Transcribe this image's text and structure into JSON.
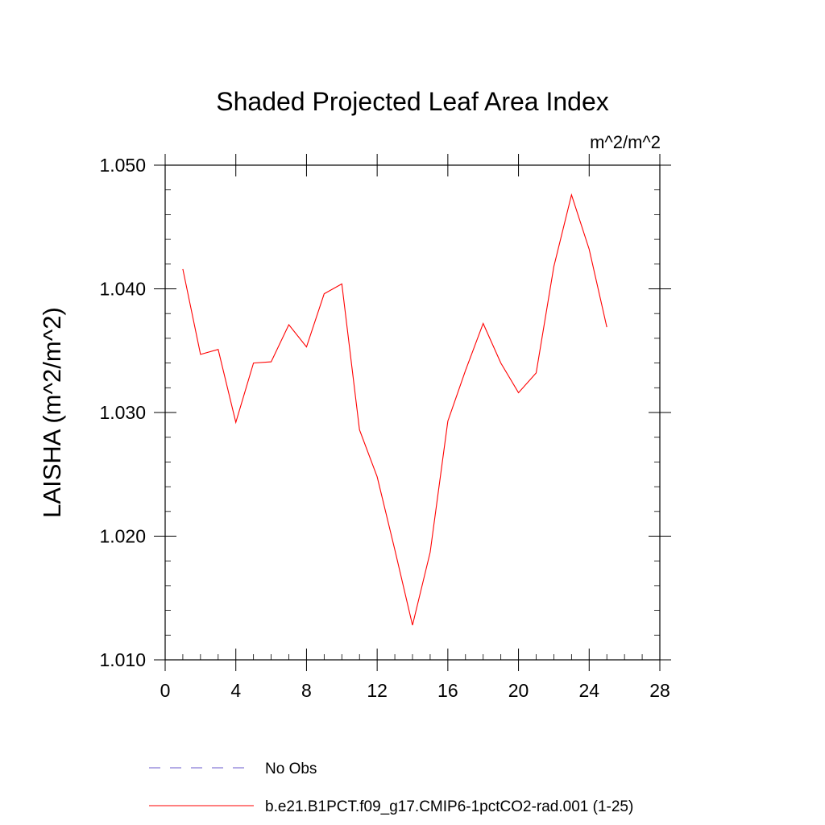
{
  "chart_data": {
    "type": "line",
    "title": "Shaded Projected Leaf Area Index",
    "units_label": "m^2/m^2",
    "ylabel": "LAISHA  (m^2/m^2)",
    "xlabel": "",
    "xlim": [
      0,
      28
    ],
    "ylim": [
      1.01,
      1.05
    ],
    "x_major_ticks": [
      0,
      4,
      8,
      12,
      16,
      20,
      24,
      28
    ],
    "x_tick_labels": [
      "0",
      "4",
      "8",
      "12",
      "16",
      "20",
      "24",
      "28"
    ],
    "y_major_ticks": [
      1.01,
      1.02,
      1.03,
      1.04,
      1.05
    ],
    "y_tick_labels": [
      "1.010",
      "1.020",
      "1.030",
      "1.040",
      "1.050"
    ],
    "grid": false,
    "legend_position": "bottom",
    "series": [
      {
        "name": "No Obs",
        "color": "#6a5acd",
        "style": "dashed",
        "x": [],
        "values": []
      },
      {
        "name": "b.e21.B1PCT.f09_g17.CMIP6-1pctCO2-rad.001 (1-25)",
        "color": "#ff0000",
        "style": "solid",
        "x": [
          1,
          2,
          3,
          4,
          5,
          6,
          7,
          8,
          9,
          10,
          11,
          12,
          13,
          14,
          15,
          16,
          17,
          18,
          19,
          20,
          21,
          22,
          23,
          24,
          25
        ],
        "values": [
          1.0416,
          1.0347,
          1.0351,
          1.0292,
          1.034,
          1.0341,
          1.0371,
          1.0353,
          1.0396,
          1.0404,
          1.0286,
          1.0248,
          1.0189,
          1.0128,
          1.0187,
          1.0293,
          1.0334,
          1.0372,
          1.034,
          1.0316,
          1.0332,
          1.0418,
          1.0476,
          1.0432,
          1.0369
        ]
      }
    ]
  }
}
